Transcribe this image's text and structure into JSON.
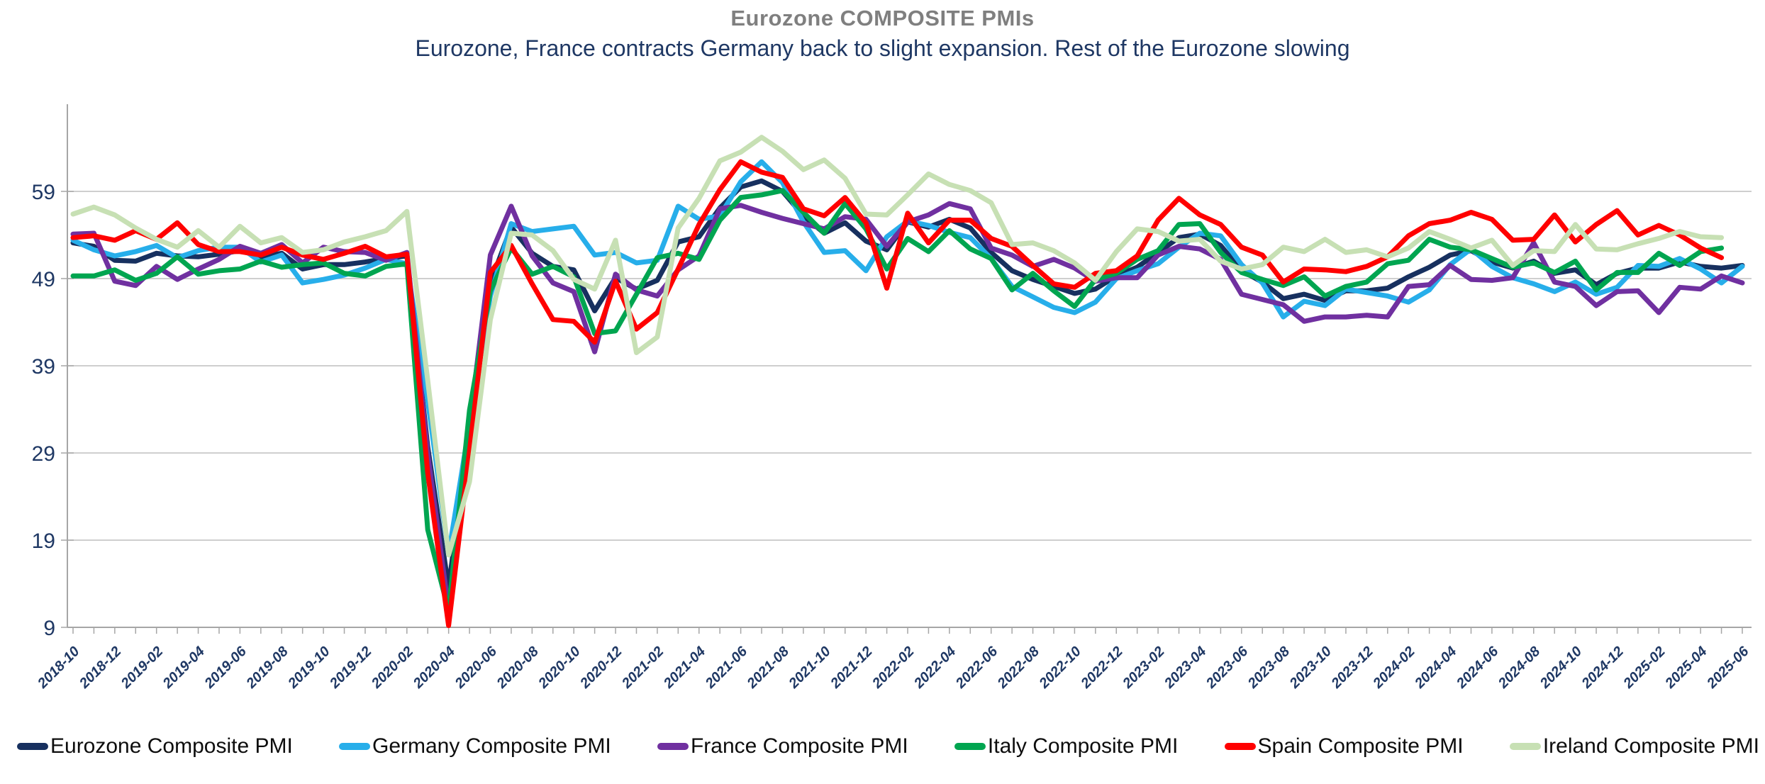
{
  "chart_data": {
    "type": "line",
    "title": "Eurozone  COMPOSITE PMIs",
    "subtitle": "Eurozone, France contracts Germany back to slight expansion. Rest of the Eurozone slowing",
    "title_color": "#7F7F7F",
    "subtitle_color": "#1F3864",
    "xlabel": "",
    "ylabel": "",
    "ylim": [
      9,
      69
    ],
    "yticks": [
      9,
      19,
      29,
      39,
      49,
      59
    ],
    "grid": true,
    "grid_color": "#BFBFBF",
    "axis_color": "#A6A6A6",
    "tick_label_color": "#1F3864",
    "legend_position": "bottom",
    "x": [
      "2018-10",
      "2018-11",
      "2018-12",
      "2019-01",
      "2019-02",
      "2019-03",
      "2019-04",
      "2019-05",
      "2019-06",
      "2019-07",
      "2019-08",
      "2019-09",
      "2019-10",
      "2019-11",
      "2019-12",
      "2020-01",
      "2020-02",
      "2020-03",
      "2020-04",
      "2020-05",
      "2020-06",
      "2020-07",
      "2020-08",
      "2020-09",
      "2020-10",
      "2020-11",
      "2020-12",
      "2021-01",
      "2021-02",
      "2021-03",
      "2021-04",
      "2021-05",
      "2021-06",
      "2021-07",
      "2021-08",
      "2021-09",
      "2021-10",
      "2021-11",
      "2021-12",
      "2022-01",
      "2022-02",
      "2022-03",
      "2022-04",
      "2022-05",
      "2022-06",
      "2022-07",
      "2022-08",
      "2022-09",
      "2022-10",
      "2022-11",
      "2022-12",
      "2023-01",
      "2023-02",
      "2023-03",
      "2023-04",
      "2023-05",
      "2023-06",
      "2023-07",
      "2023-08",
      "2023-09",
      "2023-10",
      "2023-11",
      "2023-12",
      "2024-01",
      "2024-02",
      "2024-03",
      "2024-04",
      "2024-05",
      "2024-06",
      "2024-07",
      "2024-08",
      "2024-09",
      "2024-10",
      "2024-11",
      "2024-12",
      "2025-01",
      "2025-02",
      "2025-03",
      "2025-04",
      "2025-05",
      "2025-06"
    ],
    "x_tick_every": 2,
    "series": [
      {
        "name": "Eurozone Composite PMI",
        "color": "#17305F",
        "values": [
          53.1,
          52.7,
          51.1,
          51.0,
          51.9,
          51.6,
          51.5,
          51.8,
          52.2,
          51.5,
          51.9,
          50.1,
          50.6,
          50.6,
          50.9,
          51.3,
          51.6,
          29.7,
          13.6,
          31.9,
          48.5,
          54.9,
          51.9,
          50.4,
          50.0,
          45.3,
          49.1,
          47.8,
          48.8,
          53.2,
          53.8,
          57.1,
          59.5,
          60.2,
          59.0,
          56.2,
          54.2,
          55.4,
          53.3,
          52.3,
          55.5,
          54.9,
          55.8,
          54.8,
          52.0,
          49.9,
          48.9,
          48.1,
          47.3,
          47.8,
          49.3,
          50.3,
          52.0,
          53.7,
          54.1,
          52.8,
          49.9,
          48.6,
          46.7,
          47.2,
          46.5,
          47.6,
          47.6,
          47.9,
          49.2,
          50.3,
          51.7,
          52.2,
          50.9,
          50.2,
          51.0,
          49.6,
          50.0,
          48.3,
          49.6,
          50.2,
          50.2,
          50.9,
          50.4,
          50.2,
          50.5
        ]
      },
      {
        "name": "Germany Composite PMI",
        "color": "#27AEEA",
        "values": [
          53.4,
          52.3,
          51.6,
          52.1,
          52.8,
          51.4,
          52.2,
          52.6,
          52.6,
          50.9,
          51.7,
          48.5,
          48.9,
          49.4,
          50.2,
          51.2,
          50.7,
          35.0,
          17.4,
          32.3,
          47.0,
          55.3,
          54.4,
          54.7,
          55.0,
          51.7,
          52.0,
          50.8,
          51.1,
          57.3,
          55.8,
          56.2,
          60.1,
          62.4,
          60.0,
          55.5,
          52.0,
          52.2,
          49.9,
          53.8,
          55.6,
          55.1,
          54.3,
          53.7,
          51.3,
          48.1,
          46.9,
          45.7,
          45.1,
          46.3,
          49.0,
          49.9,
          50.7,
          52.6,
          54.2,
          53.9,
          50.6,
          48.5,
          44.6,
          46.4,
          45.9,
          47.8,
          47.4,
          47.0,
          46.3,
          47.7,
          50.6,
          52.4,
          50.4,
          49.1,
          48.4,
          47.5,
          48.6,
          47.2,
          48.0,
          50.5,
          50.4,
          51.3,
          50.1,
          48.5,
          50.4
        ]
      },
      {
        "name": "France Composite PMI",
        "color": "#7030A0",
        "values": [
          54.1,
          54.2,
          48.7,
          48.2,
          50.4,
          48.9,
          50.1,
          51.2,
          52.7,
          51.9,
          52.9,
          50.8,
          52.6,
          52.1,
          52.0,
          51.1,
          52.0,
          28.9,
          11.1,
          32.1,
          51.7,
          57.3,
          51.6,
          48.5,
          47.5,
          40.6,
          49.5,
          47.7,
          47.0,
          50.0,
          51.6,
          57.0,
          57.4,
          56.6,
          55.9,
          55.3,
          54.7,
          56.1,
          55.8,
          52.7,
          55.5,
          56.3,
          57.6,
          57.0,
          52.5,
          51.7,
          50.4,
          51.2,
          50.2,
          48.7,
          49.1,
          49.1,
          51.7,
          52.7,
          52.4,
          51.2,
          47.2,
          46.6,
          46.0,
          44.1,
          44.6,
          44.6,
          44.8,
          44.6,
          48.1,
          48.3,
          50.5,
          48.9,
          48.8,
          49.1,
          53.1,
          48.6,
          48.1,
          45.9,
          47.5,
          47.6,
          45.1,
          48.0,
          47.8,
          49.3,
          48.5
        ]
      },
      {
        "name": "Italy Composite PMI",
        "color": "#00A550",
        "values": [
          49.3,
          49.3,
          50.0,
          48.8,
          49.6,
          51.5,
          49.5,
          49.9,
          50.1,
          51.0,
          50.3,
          50.6,
          50.8,
          49.6,
          49.3,
          50.4,
          50.7,
          20.2,
          10.9,
          33.9,
          47.6,
          52.5,
          49.5,
          50.4,
          49.2,
          42.7,
          43.0,
          47.2,
          51.4,
          51.9,
          51.2,
          55.7,
          58.3,
          58.6,
          59.1,
          56.6,
          54.2,
          57.6,
          54.7,
          50.1,
          53.6,
          52.1,
          54.5,
          52.4,
          51.3,
          47.7,
          49.6,
          47.6,
          45.8,
          48.9,
          49.6,
          51.2,
          52.2,
          55.2,
          55.3,
          52.0,
          49.7,
          48.9,
          48.2,
          49.2,
          47.0,
          48.1,
          48.6,
          50.7,
          51.1,
          53.5,
          52.6,
          52.3,
          51.3,
          50.3,
          50.8,
          49.7,
          51.0,
          47.7,
          49.7,
          49.7,
          51.9,
          50.5,
          52.1,
          52.5,
          null
        ]
      },
      {
        "name": "Spain Composite PMI",
        "color": "#FF0000",
        "values": [
          53.7,
          53.9,
          53.4,
          54.5,
          53.5,
          55.4,
          52.9,
          52.1,
          52.1,
          51.7,
          52.6,
          51.7,
          51.2,
          51.9,
          52.7,
          51.5,
          51.8,
          26.7,
          9.2,
          29.2,
          49.7,
          52.8,
          48.4,
          44.3,
          44.1,
          41.7,
          48.7,
          43.2,
          45.1,
          50.1,
          55.2,
          59.2,
          62.4,
          61.2,
          60.6,
          57.0,
          56.2,
          58.3,
          55.4,
          47.9,
          56.5,
          53.1,
          55.7,
          55.7,
          53.6,
          52.7,
          50.5,
          48.4,
          48.0,
          49.6,
          49.9,
          51.6,
          55.7,
          58.2,
          56.3,
          55.2,
          52.6,
          51.7,
          48.6,
          50.1,
          50.0,
          49.8,
          50.4,
          51.5,
          53.9,
          55.3,
          55.7,
          56.6,
          55.8,
          53.4,
          53.5,
          56.3,
          53.2,
          55.2,
          56.8,
          54.0,
          55.1,
          54.0,
          52.5,
          51.4,
          null
        ]
      },
      {
        "name": "Ireland Composite PMI",
        "color": "#C7E0B4",
        "values": [
          56.4,
          57.2,
          56.3,
          54.8,
          53.5,
          52.6,
          54.5,
          52.6,
          55.0,
          53.1,
          53.7,
          52.0,
          52.3,
          53.2,
          53.8,
          54.5,
          56.7,
          37.3,
          17.3,
          25.7,
          44.3,
          54.2,
          54.0,
          52.2,
          48.9,
          47.8,
          53.4,
          40.5,
          42.3,
          54.8,
          58.2,
          62.5,
          63.5,
          65.2,
          63.6,
          61.5,
          62.6,
          60.5,
          56.4,
          56.3,
          58.6,
          61.0,
          59.8,
          59.1,
          57.7,
          52.9,
          53.1,
          52.2,
          50.8,
          48.8,
          52.1,
          54.7,
          54.4,
          53.3,
          53.5,
          51.0,
          50.1,
          50.6,
          52.6,
          52.1,
          53.5,
          52.0,
          52.3,
          51.5,
          52.5,
          54.4,
          53.5,
          52.5,
          53.4,
          50.5,
          52.2,
          52.1,
          55.2,
          52.4,
          52.3,
          53.0,
          53.6,
          54.4,
          53.8,
          53.7,
          null
        ]
      }
    ]
  }
}
